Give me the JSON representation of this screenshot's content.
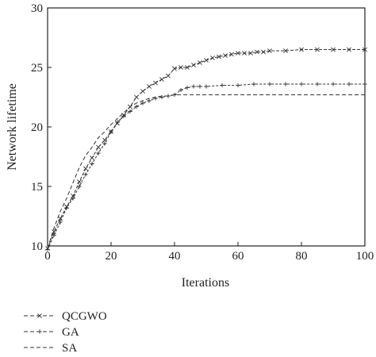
{
  "chart_data": {
    "type": "line",
    "title": "",
    "xlabel": "Iterations",
    "ylabel": "Network lifetime",
    "xlim": [
      0,
      100
    ],
    "ylim": [
      10,
      30
    ],
    "xticks": [
      0,
      20,
      40,
      60,
      80,
      100
    ],
    "yticks": [
      10,
      15,
      20,
      25,
      30
    ],
    "xtick_labels": [
      "0",
      "20",
      "40",
      "60",
      "80",
      "100"
    ],
    "ytick_labels": [
      "10",
      "15",
      "20",
      "25",
      "30"
    ],
    "grid": false,
    "legend_position": "bottom-left",
    "series": [
      {
        "name": "QCGWO",
        "marker": "x",
        "x": [
          0,
          2,
          4,
          6,
          8,
          10,
          12,
          14,
          16,
          18,
          20,
          22,
          24,
          26,
          28,
          30,
          32,
          34,
          36,
          38,
          40,
          42,
          44,
          46,
          48,
          50,
          52,
          54,
          56,
          58,
          60,
          62,
          64,
          66,
          68,
          70,
          75,
          80,
          85,
          90,
          95,
          100
        ],
        "y": [
          9.8,
          11.2,
          12.3,
          13.3,
          14.2,
          15.4,
          16.5,
          17.4,
          18.3,
          18.9,
          19.6,
          20.3,
          21.0,
          21.7,
          22.5,
          23.0,
          23.4,
          23.7,
          24.0,
          24.3,
          24.9,
          25.0,
          25.0,
          25.2,
          25.4,
          25.6,
          25.8,
          25.9,
          26.0,
          26.1,
          26.2,
          26.2,
          26.2,
          26.3,
          26.3,
          26.4,
          26.4,
          26.5,
          26.5,
          26.5,
          26.5,
          26.5
        ]
      },
      {
        "name": "GA",
        "marker": "+",
        "x": [
          0,
          2,
          4,
          6,
          8,
          10,
          12,
          14,
          16,
          18,
          20,
          22,
          24,
          26,
          28,
          30,
          32,
          34,
          36,
          38,
          40,
          42,
          44,
          46,
          48,
          50,
          55,
          60,
          65,
          70,
          75,
          80,
          85,
          90,
          95,
          100
        ],
        "y": [
          9.7,
          10.9,
          12.0,
          13.2,
          14.0,
          15.0,
          16.0,
          16.9,
          17.8,
          18.6,
          19.6,
          20.4,
          20.9,
          21.3,
          21.7,
          22.0,
          22.2,
          22.4,
          22.5,
          22.6,
          22.7,
          23.1,
          23.3,
          23.4,
          23.4,
          23.4,
          23.5,
          23.5,
          23.6,
          23.6,
          23.6,
          23.6,
          23.6,
          23.6,
          23.6,
          23.6
        ]
      },
      {
        "name": "SA",
        "marker": "none",
        "x": [
          0,
          2,
          4,
          6,
          8,
          10,
          12,
          14,
          16,
          18,
          20,
          22,
          24,
          26,
          28,
          30,
          32,
          34,
          36,
          38,
          40,
          42,
          44,
          50,
          60,
          70,
          80,
          90,
          100
        ],
        "y": [
          9.8,
          11.5,
          12.9,
          14.0,
          15.3,
          16.6,
          17.6,
          18.3,
          19.1,
          19.6,
          20.2,
          20.7,
          21.2,
          21.7,
          22.0,
          22.2,
          22.4,
          22.5,
          22.6,
          22.6,
          22.7,
          22.7,
          22.7,
          22.7,
          22.7,
          22.7,
          22.7,
          22.7,
          22.7
        ]
      }
    ]
  },
  "colors": {
    "axis": "#222222",
    "line": "#333333"
  }
}
